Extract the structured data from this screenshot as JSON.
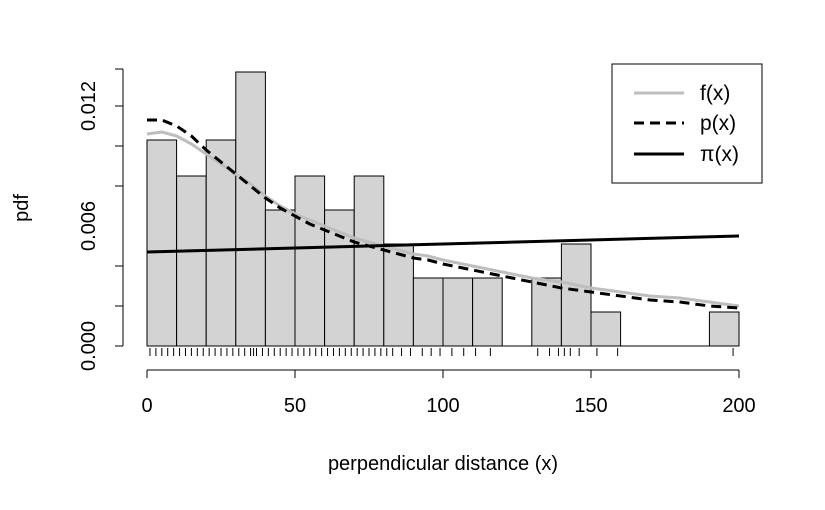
{
  "chart_data": {
    "type": "histogram",
    "xlabel": "perpendicular distance (x)",
    "ylabel": "pdf",
    "xlim": [
      0,
      200
    ],
    "ylim": [
      0,
      0.0138
    ],
    "x_ticks": [
      0,
      50,
      100,
      150,
      200
    ],
    "y_ticks": [
      "0.000",
      "0.006",
      "0.012"
    ],
    "y_tick_values": [
      0,
      0.006,
      0.012
    ],
    "y_minor_ticks": [
      0.002,
      0.004,
      0.008,
      0.01,
      0.012
    ],
    "bin_width": 10,
    "bins": [
      {
        "x0": 0,
        "x1": 10,
        "density": 0.0103
      },
      {
        "x0": 10,
        "x1": 20,
        "density": 0.0085
      },
      {
        "x0": 20,
        "x1": 30,
        "density": 0.0103
      },
      {
        "x0": 30,
        "x1": 40,
        "density": 0.0137
      },
      {
        "x0": 40,
        "x1": 50,
        "density": 0.0068
      },
      {
        "x0": 50,
        "x1": 60,
        "density": 0.0085
      },
      {
        "x0": 60,
        "x1": 70,
        "density": 0.0068
      },
      {
        "x0": 70,
        "x1": 80,
        "density": 0.0085
      },
      {
        "x0": 80,
        "x1": 90,
        "density": 0.0051
      },
      {
        "x0": 90,
        "x1": 100,
        "density": 0.0034
      },
      {
        "x0": 100,
        "x1": 110,
        "density": 0.0034
      },
      {
        "x0": 110,
        "x1": 120,
        "density": 0.0034
      },
      {
        "x0": 120,
        "x1": 130,
        "density": 0.0
      },
      {
        "x0": 130,
        "x1": 140,
        "density": 0.0034
      },
      {
        "x0": 140,
        "x1": 150,
        "density": 0.0051
      },
      {
        "x0": 150,
        "x1": 160,
        "density": 0.0017
      },
      {
        "x0": 160,
        "x1": 170,
        "density": 0.0
      },
      {
        "x0": 170,
        "x1": 180,
        "density": 0.0
      },
      {
        "x0": 180,
        "x1": 190,
        "density": 0.0
      },
      {
        "x0": 190,
        "x1": 200,
        "density": 0.0017
      }
    ],
    "rug": [
      1,
      3,
      5,
      7,
      9,
      11,
      13,
      15,
      17,
      19,
      21,
      23,
      25,
      27,
      29,
      31,
      33,
      35,
      36,
      37,
      39,
      41,
      43,
      45,
      47,
      49,
      51,
      53,
      55,
      57,
      59,
      61,
      63,
      65,
      67,
      69,
      71,
      73,
      75,
      77,
      79,
      81,
      83,
      86,
      89,
      93,
      96,
      99,
      103,
      107,
      111,
      116,
      132,
      136,
      139,
      141,
      143,
      146,
      152,
      159,
      198
    ],
    "series": [
      {
        "name": "f(x)",
        "style": "solid",
        "color": "#bebebe",
        "x": [
          0,
          5,
          10,
          15,
          20,
          25,
          30,
          35,
          40,
          45,
          50,
          55,
          60,
          65,
          70,
          75,
          80,
          85,
          90,
          95,
          100,
          110,
          120,
          130,
          140,
          150,
          160,
          170,
          180,
          190,
          200
        ],
        "y": [
          0.0106,
          0.0107,
          0.0105,
          0.0101,
          0.0096,
          0.0091,
          0.0086,
          0.0081,
          0.0075,
          0.007,
          0.0066,
          0.0063,
          0.006,
          0.0057,
          0.0054,
          0.0052,
          0.005,
          0.0048,
          0.0046,
          0.0045,
          0.0043,
          0.004,
          0.0037,
          0.0034,
          0.0032,
          0.0029,
          0.0027,
          0.0025,
          0.0024,
          0.0022,
          0.002
        ]
      },
      {
        "name": "p(x)",
        "style": "dashed",
        "color": "#000000",
        "x": [
          0,
          5,
          10,
          15,
          20,
          25,
          30,
          35,
          40,
          45,
          50,
          55,
          60,
          65,
          70,
          75,
          80,
          85,
          90,
          95,
          100,
          110,
          120,
          130,
          140,
          150,
          160,
          170,
          180,
          190,
          200
        ],
        "y": [
          0.0113,
          0.0113,
          0.011,
          0.0105,
          0.0098,
          0.0092,
          0.0086,
          0.008,
          0.0074,
          0.0069,
          0.0065,
          0.0061,
          0.0058,
          0.0055,
          0.0052,
          0.005,
          0.0048,
          0.0046,
          0.0044,
          0.0043,
          0.0041,
          0.0038,
          0.0035,
          0.0032,
          0.0029,
          0.0027,
          0.0025,
          0.0023,
          0.0022,
          0.002,
          0.0019
        ]
      },
      {
        "name": "π(x)",
        "style": "solid",
        "color": "#000000",
        "x": [
          0,
          200
        ],
        "y": [
          0.0047,
          0.0055
        ]
      }
    ],
    "legend": {
      "position": "top-right",
      "entries": [
        "f(x)",
        "p(x)",
        "π(x)"
      ]
    },
    "colors": {
      "bar_fill": "#d3d3d3",
      "bar_stroke": "#000000",
      "f_line": "#bebebe",
      "p_line": "#000000",
      "pi_line": "#000000"
    }
  }
}
